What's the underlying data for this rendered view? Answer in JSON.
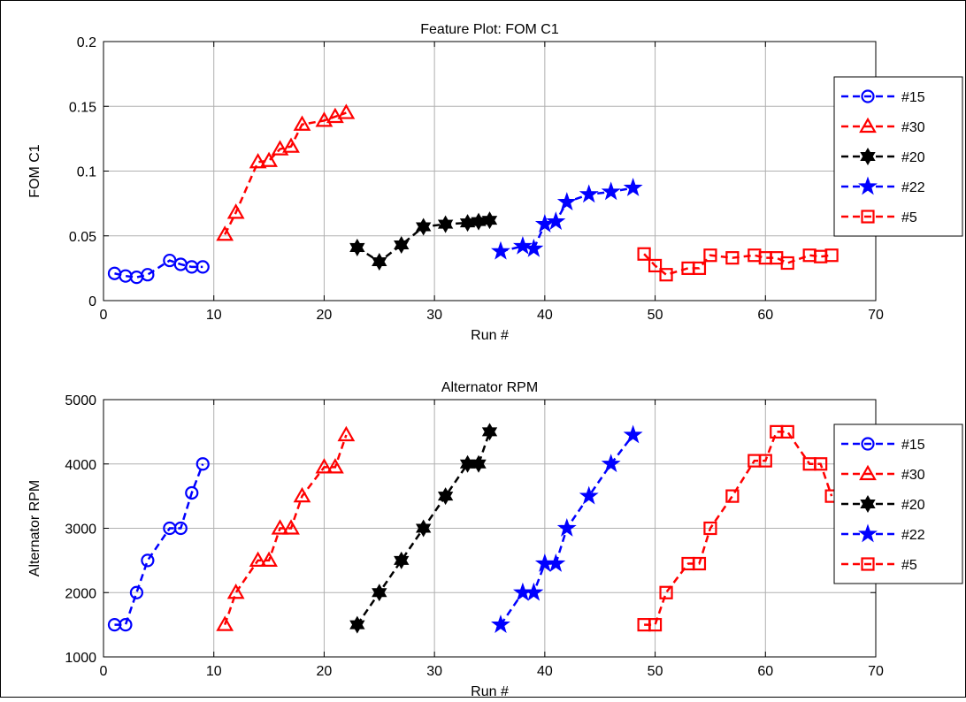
{
  "chart_data": [
    {
      "type": "line",
      "title": "Feature Plot: FOM C1",
      "xlabel": "Run #",
      "ylabel": "FOM C1",
      "xlim": [
        0,
        70
      ],
      "ylim": [
        0,
        0.2
      ],
      "xticks": [
        "0",
        "10",
        "20",
        "30",
        "40",
        "50",
        "60",
        "70"
      ],
      "yticks": [
        "0",
        "0.05",
        "0.1",
        "0.15",
        "0.2"
      ],
      "grid": true,
      "legend_position": "right",
      "series": [
        {
          "name": "#15",
          "color": "#0000ff",
          "marker": "circle",
          "x": [
            1,
            2,
            3,
            4,
            6,
            7,
            8,
            9
          ],
          "y": [
            0.021,
            0.019,
            0.018,
            0.02,
            0.031,
            0.028,
            0.026,
            0.026
          ]
        },
        {
          "name": "#30",
          "color": "#ff0000",
          "marker": "triangle",
          "x": [
            11,
            12,
            14,
            15,
            16,
            17,
            18,
            20,
            21,
            22
          ],
          "y": [
            0.051,
            0.068,
            0.107,
            0.108,
            0.117,
            0.119,
            0.136,
            0.139,
            0.142,
            0.145
          ]
        },
        {
          "name": "#20",
          "color": "#000000",
          "marker": "hexagram",
          "x": [
            23,
            25,
            27,
            29,
            31,
            33,
            34,
            35
          ],
          "y": [
            0.041,
            0.03,
            0.043,
            0.057,
            0.059,
            0.06,
            0.061,
            0.062
          ]
        },
        {
          "name": "#22",
          "color": "#0000ff",
          "marker": "pentagram",
          "x": [
            36,
            38,
            39,
            40,
            41,
            42,
            44,
            46,
            48
          ],
          "y": [
            0.038,
            0.042,
            0.04,
            0.059,
            0.061,
            0.076,
            0.082,
            0.084,
            0.087
          ]
        },
        {
          "name": "#5",
          "color": "#ff0000",
          "marker": "square",
          "x": [
            49,
            50,
            51,
            53,
            54,
            55,
            57,
            59,
            60,
            61,
            62,
            64,
            65,
            66
          ],
          "y": [
            0.036,
            0.027,
            0.02,
            0.025,
            0.025,
            0.035,
            0.033,
            0.035,
            0.033,
            0.033,
            0.029,
            0.035,
            0.034,
            0.035
          ]
        }
      ]
    },
    {
      "type": "line",
      "title": "Alternator RPM",
      "xlabel": "Run #",
      "ylabel": "Alternator RPM",
      "xlim": [
        0,
        70
      ],
      "ylim": [
        1000,
        5000
      ],
      "xticks": [
        "0",
        "10",
        "20",
        "30",
        "40",
        "50",
        "60",
        "70"
      ],
      "yticks": [
        "1000",
        "2000",
        "3000",
        "4000",
        "5000"
      ],
      "grid": true,
      "legend_position": "right",
      "series": [
        {
          "name": "#15",
          "color": "#0000ff",
          "marker": "circle",
          "x": [
            1,
            2,
            3,
            4,
            6,
            7,
            8,
            9
          ],
          "y": [
            1500,
            1500,
            2000,
            2500,
            3000,
            3000,
            3550,
            4000
          ]
        },
        {
          "name": "#30",
          "color": "#ff0000",
          "marker": "triangle",
          "x": [
            11,
            12,
            14,
            15,
            16,
            17,
            18,
            20,
            21,
            22
          ],
          "y": [
            1500,
            2000,
            2500,
            2500,
            3000,
            3000,
            3500,
            3950,
            3950,
            4450
          ]
        },
        {
          "name": "#20",
          "color": "#000000",
          "marker": "hexagram",
          "x": [
            23,
            25,
            27,
            29,
            31,
            33,
            34,
            35
          ],
          "y": [
            1500,
            2000,
            2500,
            3000,
            3500,
            4000,
            4000,
            4500
          ]
        },
        {
          "name": "#22",
          "color": "#0000ff",
          "marker": "pentagram",
          "x": [
            36,
            38,
            39,
            40,
            41,
            42,
            44,
            46,
            48
          ],
          "y": [
            1500,
            2000,
            2000,
            2450,
            2450,
            3000,
            3500,
            4000,
            4450
          ]
        },
        {
          "name": "#5",
          "color": "#ff0000",
          "marker": "square",
          "x": [
            49,
            50,
            51,
            53,
            54,
            55,
            57,
            59,
            60,
            61,
            62,
            64,
            65,
            66
          ],
          "y": [
            1500,
            1500,
            2000,
            2450,
            2450,
            3000,
            3500,
            4050,
            4050,
            4500,
            4500,
            4000,
            4000,
            3500
          ]
        }
      ]
    }
  ]
}
